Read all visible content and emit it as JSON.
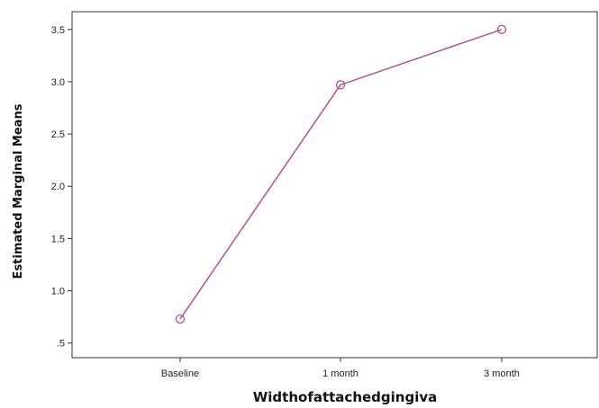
{
  "chart_data": {
    "type": "line",
    "xlabel": "Widthofattachedgingiva",
    "ylabel": "Estimated Marginal Means",
    "categories": [
      "Baseline",
      "1 month",
      "3 month"
    ],
    "series": [
      {
        "values": [
          0.73,
          2.97,
          3.5
        ],
        "color": "#b5508f",
        "marker": "open-circle"
      }
    ],
    "y_ticks": [
      ".5",
      "1.0",
      "1.5",
      "2.0",
      "2.5",
      "3.0",
      "3.5"
    ],
    "y_tick_values": [
      0.5,
      1.0,
      1.5,
      2.0,
      2.5,
      3.0,
      3.5
    ],
    "ylim": [
      0.36,
      3.67
    ],
    "grid": false,
    "legend": "none",
    "colors": {
      "axis": "#333333",
      "plot_background": "#ffffff"
    }
  }
}
